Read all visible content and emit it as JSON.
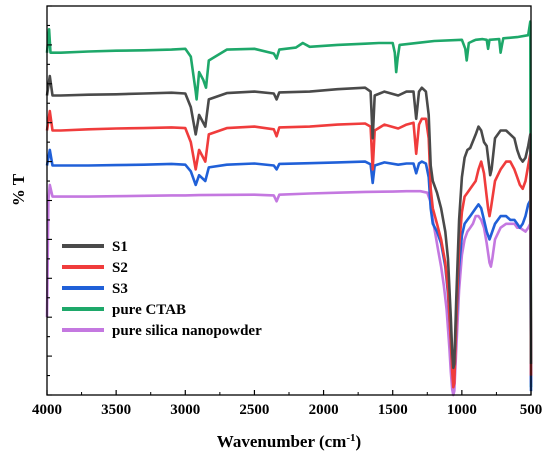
{
  "chart_data": {
    "type": "line",
    "title": "",
    "xlabel": "Wavenumber (cm",
    "xlabel_sup": "-1",
    "xlabel_close": ")",
    "ylabel": "% T",
    "xlim": [
      4000,
      500
    ],
    "x_ticks": [
      "4000",
      "3500",
      "3000",
      "2500",
      "2000",
      "1500",
      "1000",
      "500"
    ],
    "x_tick_values": [
      4000,
      3500,
      3000,
      2500,
      2000,
      1500,
      1000,
      500
    ],
    "ylim": [
      0,
      100
    ],
    "y_ticks_labeled": false,
    "grid": false,
    "legend_position": "bottom-left",
    "series": [
      {
        "name": "S1",
        "color": "#4a4a4a",
        "points": [
          [
            4000,
            77
          ],
          [
            3980,
            82
          ],
          [
            3960,
            77
          ],
          [
            3900,
            77
          ],
          [
            3700,
            77.2
          ],
          [
            3500,
            77.3
          ],
          [
            3300,
            77.5
          ],
          [
            3100,
            77.7
          ],
          [
            3000,
            77.5
          ],
          [
            2960,
            74
          ],
          [
            2925,
            67
          ],
          [
            2900,
            72
          ],
          [
            2855,
            69
          ],
          [
            2830,
            76
          ],
          [
            2700,
            77.6
          ],
          [
            2500,
            78
          ],
          [
            2360,
            77.5
          ],
          [
            2340,
            76
          ],
          [
            2320,
            77.8
          ],
          [
            2100,
            78
          ],
          [
            1900,
            78.6
          ],
          [
            1700,
            79
          ],
          [
            1660,
            78
          ],
          [
            1645,
            66
          ],
          [
            1630,
            77
          ],
          [
            1560,
            78
          ],
          [
            1460,
            77
          ],
          [
            1400,
            78
          ],
          [
            1350,
            78
          ],
          [
            1330,
            71
          ],
          [
            1310,
            78
          ],
          [
            1290,
            79
          ],
          [
            1260,
            78
          ],
          [
            1240,
            72
          ],
          [
            1225,
            59
          ],
          [
            1210,
            55
          ],
          [
            1180,
            52
          ],
          [
            1150,
            48
          ],
          [
            1120,
            42
          ],
          [
            1100,
            35
          ],
          [
            1080,
            20
          ],
          [
            1070,
            11
          ],
          [
            1062,
            7
          ],
          [
            1055,
            8
          ],
          [
            1040,
            25
          ],
          [
            1020,
            45
          ],
          [
            1000,
            56
          ],
          [
            980,
            61
          ],
          [
            960,
            63
          ],
          [
            940,
            63.5
          ],
          [
            900,
            67
          ],
          [
            880,
            69
          ],
          [
            860,
            68
          ],
          [
            840,
            65
          ],
          [
            820,
            64
          ],
          [
            800,
            58
          ],
          [
            795,
            56.5
          ],
          [
            785,
            58
          ],
          [
            760,
            66
          ],
          [
            720,
            68
          ],
          [
            680,
            68
          ],
          [
            650,
            67
          ],
          [
            620,
            66
          ],
          [
            600,
            63
          ],
          [
            580,
            61
          ],
          [
            560,
            60
          ],
          [
            540,
            61
          ],
          [
            520,
            64
          ],
          [
            505,
            67
          ],
          [
            500,
            8
          ]
        ]
      },
      {
        "name": "S2",
        "color": "#f03c3c",
        "points": [
          [
            4000,
            68
          ],
          [
            3980,
            73
          ],
          [
            3960,
            68
          ],
          [
            3900,
            68
          ],
          [
            3700,
            68.3
          ],
          [
            3500,
            68.5
          ],
          [
            3300,
            68.6
          ],
          [
            3100,
            68.8
          ],
          [
            3000,
            68.6
          ],
          [
            2960,
            65
          ],
          [
            2925,
            58
          ],
          [
            2900,
            63
          ],
          [
            2855,
            60
          ],
          [
            2830,
            67
          ],
          [
            2700,
            68.6
          ],
          [
            2500,
            69
          ],
          [
            2360,
            68.3
          ],
          [
            2340,
            66.5
          ],
          [
            2320,
            68.8
          ],
          [
            2100,
            69
          ],
          [
            1900,
            69.5
          ],
          [
            1700,
            69.8
          ],
          [
            1660,
            69
          ],
          [
            1645,
            58
          ],
          [
            1630,
            68
          ],
          [
            1560,
            69.5
          ],
          [
            1460,
            68.5
          ],
          [
            1400,
            69.5
          ],
          [
            1350,
            70
          ],
          [
            1330,
            62
          ],
          [
            1310,
            69.5
          ],
          [
            1290,
            71
          ],
          [
            1260,
            71
          ],
          [
            1240,
            66
          ],
          [
            1225,
            53
          ],
          [
            1210,
            48
          ],
          [
            1180,
            44
          ],
          [
            1150,
            40
          ],
          [
            1120,
            34
          ],
          [
            1100,
            27
          ],
          [
            1080,
            14
          ],
          [
            1070,
            6
          ],
          [
            1062,
            2
          ],
          [
            1055,
            3
          ],
          [
            1040,
            19
          ],
          [
            1020,
            38
          ],
          [
            1000,
            47
          ],
          [
            980,
            51
          ],
          [
            960,
            52
          ],
          [
            940,
            53
          ],
          [
            900,
            55
          ],
          [
            880,
            58
          ],
          [
            860,
            60
          ],
          [
            840,
            57
          ],
          [
            820,
            51
          ],
          [
            810,
            48
          ],
          [
            800,
            46
          ],
          [
            790,
            48
          ],
          [
            760,
            55
          ],
          [
            720,
            58
          ],
          [
            680,
            60
          ],
          [
            650,
            60
          ],
          [
            620,
            58
          ],
          [
            600,
            56
          ],
          [
            580,
            54
          ],
          [
            560,
            53
          ],
          [
            540,
            55
          ],
          [
            520,
            59
          ],
          [
            505,
            62
          ],
          [
            500,
            5
          ]
        ]
      },
      {
        "name": "S3",
        "color": "#2060d8",
        "points": [
          [
            4000,
            59
          ],
          [
            3980,
            63
          ],
          [
            3960,
            59
          ],
          [
            3900,
            59
          ],
          [
            3700,
            59
          ],
          [
            3500,
            59.1
          ],
          [
            3300,
            59.2
          ],
          [
            3100,
            59.4
          ],
          [
            3000,
            59.2
          ],
          [
            2960,
            57.5
          ],
          [
            2925,
            54
          ],
          [
            2900,
            56.5
          ],
          [
            2855,
            55
          ],
          [
            2830,
            58.5
          ],
          [
            2700,
            59.2
          ],
          [
            2500,
            59.5
          ],
          [
            2360,
            59
          ],
          [
            2340,
            58
          ],
          [
            2320,
            59.4
          ],
          [
            2100,
            59.6
          ],
          [
            1900,
            59.8
          ],
          [
            1700,
            60
          ],
          [
            1660,
            59.3
          ],
          [
            1645,
            54.5
          ],
          [
            1630,
            59
          ],
          [
            1560,
            59.8
          ],
          [
            1460,
            59.2
          ],
          [
            1400,
            59.5
          ],
          [
            1350,
            59.5
          ],
          [
            1330,
            57
          ],
          [
            1310,
            59.5
          ],
          [
            1290,
            60
          ],
          [
            1260,
            59.5
          ],
          [
            1240,
            56
          ],
          [
            1225,
            48
          ],
          [
            1210,
            44
          ],
          [
            1180,
            42
          ],
          [
            1150,
            39
          ],
          [
            1120,
            33
          ],
          [
            1100,
            26
          ],
          [
            1080,
            14
          ],
          [
            1070,
            7
          ],
          [
            1062,
            4
          ],
          [
            1055,
            5
          ],
          [
            1040,
            18
          ],
          [
            1020,
            33
          ],
          [
            1000,
            41
          ],
          [
            980,
            44
          ],
          [
            960,
            45
          ],
          [
            940,
            46
          ],
          [
            900,
            48
          ],
          [
            880,
            49
          ],
          [
            860,
            48
          ],
          [
            840,
            45
          ],
          [
            820,
            42
          ],
          [
            800,
            40
          ],
          [
            790,
            41
          ],
          [
            760,
            44
          ],
          [
            720,
            46
          ],
          [
            680,
            46
          ],
          [
            650,
            45
          ],
          [
            620,
            45
          ],
          [
            600,
            44
          ],
          [
            580,
            43
          ],
          [
            560,
            44
          ],
          [
            540,
            46
          ],
          [
            520,
            49
          ],
          [
            505,
            50
          ],
          [
            500,
            1
          ]
        ]
      },
      {
        "name": "pure CTAB",
        "color": "#1ea86a",
        "points": [
          [
            4000,
            88
          ],
          [
            3985,
            94
          ],
          [
            3975,
            88
          ],
          [
            3900,
            88
          ],
          [
            3700,
            88.3
          ],
          [
            3500,
            88.5
          ],
          [
            3300,
            88.6
          ],
          [
            3100,
            88.8
          ],
          [
            3000,
            89
          ],
          [
            2960,
            87
          ],
          [
            2925,
            78
          ],
          [
            2918,
            76
          ],
          [
            2900,
            83
          ],
          [
            2870,
            81
          ],
          [
            2850,
            79
          ],
          [
            2830,
            86
          ],
          [
            2700,
            88.8
          ],
          [
            2500,
            89
          ],
          [
            2360,
            87.8
          ],
          [
            2340,
            86.5
          ],
          [
            2320,
            88.8
          ],
          [
            2200,
            89.3
          ],
          [
            2150,
            90.5
          ],
          [
            2100,
            89.5
          ],
          [
            1900,
            90
          ],
          [
            1700,
            90.3
          ],
          [
            1600,
            90.5
          ],
          [
            1500,
            90.5
          ],
          [
            1485,
            88
          ],
          [
            1475,
            83
          ],
          [
            1465,
            86.5
          ],
          [
            1450,
            90
          ],
          [
            1300,
            90.6
          ],
          [
            1200,
            91
          ],
          [
            1000,
            91.3
          ],
          [
            975,
            89
          ],
          [
            965,
            86
          ],
          [
            955,
            89
          ],
          [
            950,
            90.5
          ],
          [
            920,
            91
          ],
          [
            900,
            91.3
          ],
          [
            850,
            91.5
          ],
          [
            820,
            91.3
          ],
          [
            810,
            89
          ],
          [
            800,
            91.3
          ],
          [
            730,
            91.5
          ],
          [
            720,
            88
          ],
          [
            710,
            90
          ],
          [
            700,
            91.7
          ],
          [
            600,
            92
          ],
          [
            520,
            92.5
          ],
          [
            505,
            96
          ],
          [
            500,
            2
          ]
        ]
      },
      {
        "name": "pure silica nanopowder",
        "color": "#c478e0",
        "points": [
          [
            4000,
            20
          ],
          [
            3990,
            50
          ],
          [
            3980,
            54
          ],
          [
            3960,
            51
          ],
          [
            3900,
            51
          ],
          [
            3700,
            51
          ],
          [
            3500,
            51.1
          ],
          [
            3300,
            51.2
          ],
          [
            3100,
            51.3
          ],
          [
            3000,
            51.3
          ],
          [
            2900,
            51.4
          ],
          [
            2500,
            51.5
          ],
          [
            2360,
            51.3
          ],
          [
            2340,
            49.8
          ],
          [
            2320,
            51.5
          ],
          [
            2100,
            51.8
          ],
          [
            1900,
            52
          ],
          [
            1700,
            52.2
          ],
          [
            1500,
            52.3
          ],
          [
            1400,
            52.4
          ],
          [
            1300,
            52.4
          ],
          [
            1250,
            52
          ],
          [
            1230,
            50
          ],
          [
            1210,
            45
          ],
          [
            1190,
            41
          ],
          [
            1170,
            37
          ],
          [
            1150,
            33
          ],
          [
            1130,
            28
          ],
          [
            1110,
            22
          ],
          [
            1090,
            12
          ],
          [
            1080,
            6
          ],
          [
            1070,
            1.5
          ],
          [
            1062,
            0
          ],
          [
            1055,
            1
          ],
          [
            1040,
            12
          ],
          [
            1020,
            27
          ],
          [
            1000,
            36
          ],
          [
            980,
            40
          ],
          [
            960,
            42
          ],
          [
            940,
            43
          ],
          [
            920,
            44
          ],
          [
            900,
            46
          ],
          [
            880,
            46
          ],
          [
            860,
            45
          ],
          [
            840,
            43
          ],
          [
            820,
            39
          ],
          [
            800,
            34
          ],
          [
            790,
            33
          ],
          [
            780,
            35
          ],
          [
            760,
            40
          ],
          [
            720,
            43
          ],
          [
            680,
            44
          ],
          [
            650,
            44
          ],
          [
            620,
            44
          ],
          [
            600,
            43
          ],
          [
            580,
            43
          ],
          [
            560,
            42.5
          ],
          [
            540,
            42
          ],
          [
            520,
            43
          ],
          [
            505,
            44
          ],
          [
            500,
            3
          ]
        ]
      }
    ]
  }
}
